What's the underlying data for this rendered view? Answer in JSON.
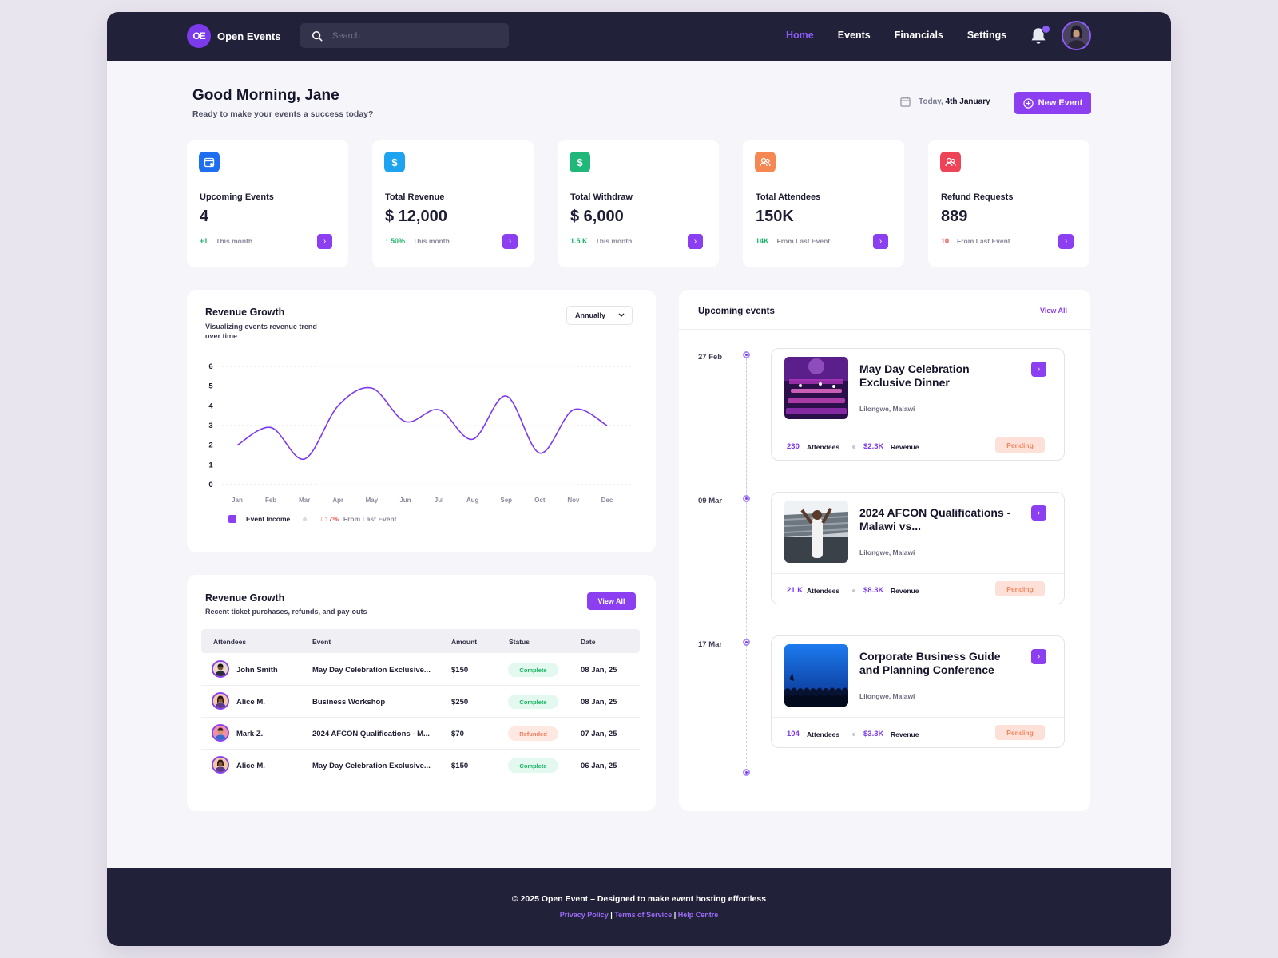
{
  "nav": {
    "brand": "Open Events",
    "logo_mark": "OE",
    "search_placeholder": "Search",
    "links": [
      "Home",
      "Events",
      "Financials",
      "Settings"
    ],
    "active_link": "Home"
  },
  "header": {
    "greeting": "Good Morning, Jane",
    "subtitle": "Ready to make your events a success today?",
    "today_prefix": "Today,",
    "today_date": "4th January",
    "new_event_label": "New Event"
  },
  "stats": [
    {
      "icon": "calendar-icon",
      "color": "#1e6ff0",
      "label": "Upcoming Events",
      "value": "4",
      "delta": "+1",
      "delta_kind": "pos",
      "note": "This month"
    },
    {
      "icon": "dollar-icon",
      "color": "#1ea3f0",
      "label": "Total Revenue",
      "value": "$ 12,000",
      "delta": "↑ 50%",
      "delta_kind": "pos",
      "note": "This month"
    },
    {
      "icon": "dollar-icon",
      "color": "#1fb87a",
      "label": "Total Withdraw",
      "value": "$ 6,000",
      "delta": "1.5 K",
      "delta_kind": "pos",
      "note": "This month"
    },
    {
      "icon": "users-icon",
      "color": "#f58752",
      "label": "Total Attendees",
      "value": "150K",
      "delta": "14K",
      "delta_kind": "pos",
      "note": "From Last Event"
    },
    {
      "icon": "users-icon",
      "color": "#ef4458",
      "label": "Refund Requests",
      "value": "889",
      "delta": "10",
      "delta_kind": "neg",
      "note": "From Last Event"
    }
  ],
  "revenue_chart": {
    "title": "Revenue Growth",
    "subtitle_line1": "Visualizing events revenue trend",
    "subtitle_line2": "over time",
    "period": "Annually",
    "legend_label": "Event Income",
    "legend_delta": "↓ 17%",
    "legend_note": "From Last Event",
    "line_color": "#7c3aed"
  },
  "chart_data": {
    "type": "line",
    "categories": [
      "Jan",
      "Feb",
      "Mar",
      "Apr",
      "May",
      "Jun",
      "Jul",
      "Aug",
      "Sep",
      "Oct",
      "Nov",
      "Dec"
    ],
    "yticks": [
      0,
      1,
      2,
      3,
      4,
      5,
      6
    ],
    "ylim": [
      0,
      6
    ],
    "series": [
      {
        "name": "Event Income",
        "values": [
          2.0,
          2.9,
          1.3,
          4.0,
          4.9,
          3.2,
          3.8,
          2.3,
          4.5,
          1.6,
          3.8,
          3.0
        ]
      }
    ],
    "grid": true
  },
  "transactions": {
    "title": "Revenue Growth",
    "subtitle": "Recent ticket purchases, refunds, and pay-outs",
    "view_all_label": "View All",
    "columns": [
      "Attendees",
      "Event",
      "Amount",
      "Status",
      "Date"
    ],
    "rows": [
      {
        "name": "John Smith",
        "event": "May Day Celebration Exclusive...",
        "amount": "$150",
        "status": "Complete",
        "status_kind": "complete",
        "date": "08 Jan, 25"
      },
      {
        "name": "Alice M.",
        "event": "Business Workshop",
        "amount": "$250",
        "status": "Complete",
        "status_kind": "complete",
        "date": "08 Jan, 25"
      },
      {
        "name": "Mark Z.",
        "event": "2024 AFCON Qualifications - M...",
        "amount": "$70",
        "status": "Refunded",
        "status_kind": "refunded",
        "date": "07 Jan, 25"
      },
      {
        "name": "Alice M.",
        "event": "May Day Celebration Exclusive...",
        "amount": "$150",
        "status": "Complete",
        "status_kind": "complete",
        "date": "06 Jan, 25"
      }
    ]
  },
  "upcoming": {
    "title": "Upcoming events",
    "view_all_label": "View All",
    "attendees_label": "Attendees",
    "revenue_label": "Revenue",
    "events": [
      {
        "date": "27 Feb",
        "title": "May Day Celebration Exclusive Dinner",
        "location": "Lilongwe, Malawi",
        "attendees": "230",
        "revenue": "$2.3K",
        "status": "Pending",
        "image": "banquet-hall-image"
      },
      {
        "date": "09 Mar",
        "title": "2024 AFCON Qualifications - Malawi vs...",
        "location": "Lilongwe, Malawi",
        "attendees": "21 K",
        "revenue": "$8.3K",
        "status": "Pending",
        "image": "stadium-image"
      },
      {
        "date": "17 Mar",
        "title": "Corporate Business Guide and Planning Conference",
        "location": "Lilongwe, Malawi",
        "attendees": "104",
        "revenue": "$3.3K",
        "status": "Pending",
        "image": "conference-crowd-image"
      }
    ]
  },
  "footer": {
    "copyright": "© 2025 Open Event – Designed to make event hosting effortless",
    "links": [
      "Privacy Policy",
      "Terms of Service",
      "Help Centre"
    ]
  }
}
